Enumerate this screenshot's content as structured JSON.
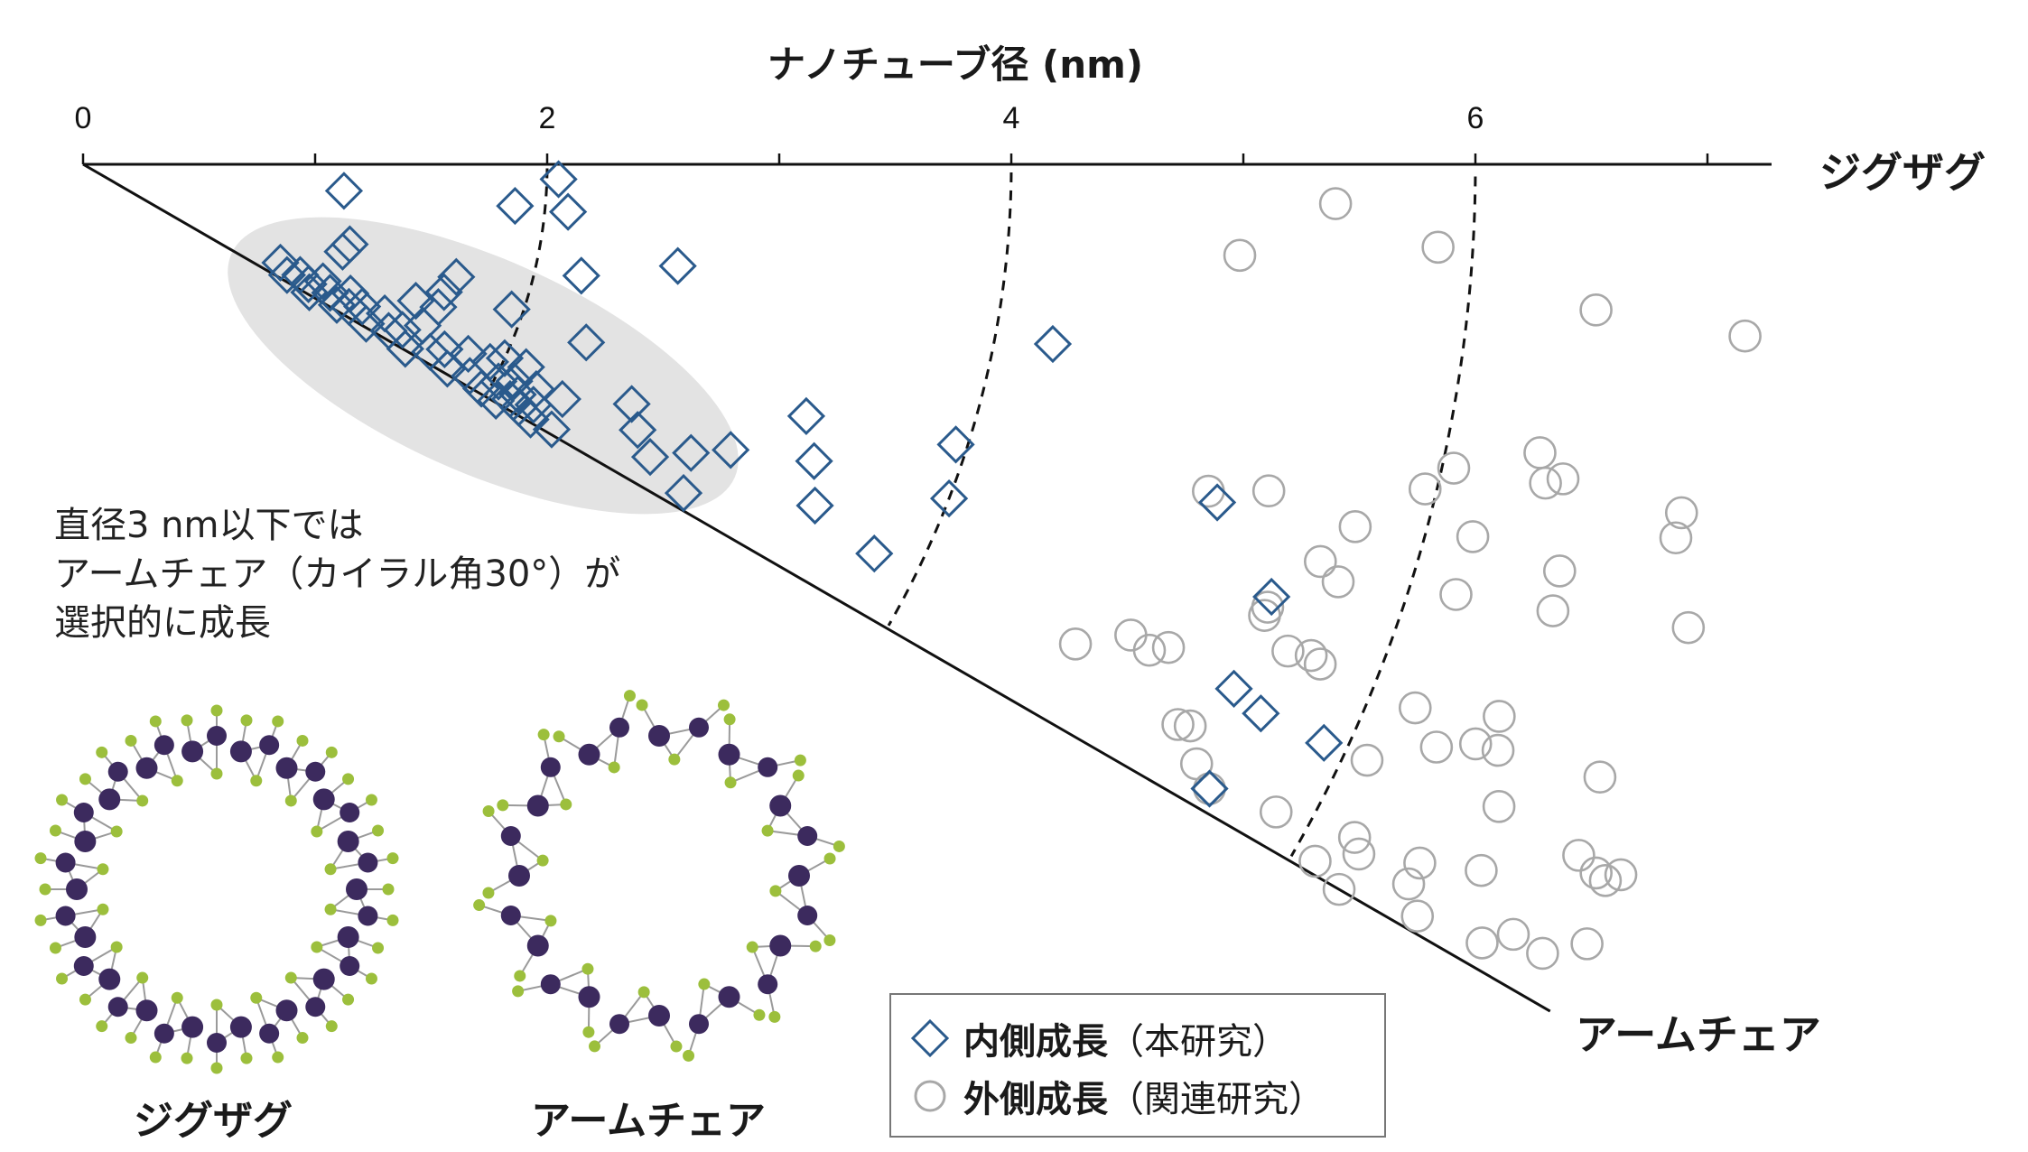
{
  "chart_data": {
    "type": "scatter",
    "coordinate_system": "polar-sector (diameter vs. chiral angle)",
    "radial_axis": {
      "label": "ナノチューブ径 (nm)",
      "ticks": [
        0,
        2,
        4,
        6
      ],
      "range": [
        0,
        7.3
      ]
    },
    "angle_axis": {
      "start_label": "ジグザグ",
      "end_label": "アームチェア",
      "range_deg": [
        0,
        30
      ]
    },
    "series": [
      {
        "name": "内側成長（本研究）",
        "marker": "diamond",
        "color": "#2a5a8c",
        "points": [
          [
            1.13,
            5.8
          ],
          [
            2.05,
            1.8
          ],
          [
            1.87,
            5.5
          ],
          [
            2.1,
            5.6
          ],
          [
            2.6,
            9.7
          ],
          [
            1.2,
            16.7
          ],
          [
            1.18,
            18.6
          ],
          [
            1.55,
            22.3
          ],
          [
            1.65,
            19.5
          ],
          [
            1.68,
            16.8
          ],
          [
            1.65,
            21.9
          ],
          [
            1.95,
            18.7
          ],
          [
            2.2,
            12.6
          ],
          [
            2.3,
            19.5
          ],
          [
            2.1,
            24.6
          ],
          [
            2.3,
            26.1
          ],
          [
            2.32,
            29.5
          ],
          [
            2.58,
            23.6
          ],
          [
            2.65,
            25.6
          ],
          [
            2.75,
            27.3
          ],
          [
            2.95,
            28.7
          ],
          [
            2.9,
            25.4
          ],
          [
            3.05,
            23.8
          ],
          [
            3.3,
            19.2
          ],
          [
            3.4,
            22.1
          ],
          [
            3.48,
            25.0
          ],
          [
            3.8,
            26.2
          ],
          [
            3.95,
            17.8
          ],
          [
            4.0,
            21.1
          ],
          [
            4.25,
            10.5
          ],
          [
            5.1,
            16.6
          ],
          [
            5.45,
            20.0
          ],
          [
            5.45,
            24.5
          ],
          [
            5.6,
            25.0
          ],
          [
            5.55,
            29.0
          ],
          [
            5.9,
            25.0
          ],
          [
            0.95,
            26.5
          ],
          [
            1.0,
            28.5
          ],
          [
            1.05,
            27.0
          ],
          [
            1.1,
            28.0
          ],
          [
            1.12,
            29.5
          ],
          [
            1.15,
            26.0
          ],
          [
            1.2,
            27.5
          ],
          [
            1.25,
            29.0
          ],
          [
            1.28,
            25.8
          ],
          [
            1.3,
            28.2
          ],
          [
            1.35,
            27.0
          ],
          [
            1.4,
            29.4
          ],
          [
            1.45,
            26.3
          ],
          [
            1.5,
            28.6
          ],
          [
            1.55,
            27.4
          ],
          [
            1.6,
            29.8
          ],
          [
            1.62,
            25.4
          ],
          [
            1.7,
            28.4
          ],
          [
            1.75,
            27.1
          ],
          [
            1.8,
            29.3
          ],
          [
            1.85,
            26.2
          ],
          [
            1.9,
            28.7
          ],
          [
            1.95,
            25.9
          ],
          [
            1.97,
            29.4
          ],
          [
            2.0,
            24.7
          ],
          [
            2.02,
            27.6
          ],
          [
            2.05,
            29.8
          ],
          [
            2.08,
            26.7
          ],
          [
            2.1,
            28.8
          ],
          [
            2.12,
            27.9
          ],
          [
            2.15,
            29.2
          ],
          [
            2.18,
            26.4
          ],
          [
            2.2,
            28.1
          ],
          [
            2.22,
            29.7
          ]
        ]
      },
      {
        "name": "外側成長（関連研究）",
        "marker": "circle",
        "color": "#a8a8a8",
        "points": [
          [
            5.0,
            4.5
          ],
          [
            5.4,
            1.8
          ],
          [
            5.85,
            3.5
          ],
          [
            6.55,
            5.5
          ],
          [
            7.2,
            5.9
          ],
          [
            6.05,
            12.5
          ],
          [
            6.4,
            11.2
          ],
          [
            6.45,
            12.3
          ],
          [
            6.52,
            12.0
          ],
          [
            7.05,
            12.3
          ],
          [
            7.05,
            13.2
          ],
          [
            5.05,
            16.2
          ],
          [
            5.3,
            15.4
          ],
          [
            5.95,
            13.6
          ],
          [
            5.7,
            15.9
          ],
          [
            5.6,
            17.8
          ],
          [
            5.7,
            18.4
          ],
          [
            6.2,
            17.4
          ],
          [
            6.2,
            15.0
          ],
          [
            6.6,
            15.4
          ],
          [
            6.62,
            16.9
          ],
          [
            7.2,
            16.1
          ],
          [
            4.75,
            25.8
          ],
          [
            4.95,
            24.2
          ],
          [
            5.05,
            24.5
          ],
          [
            5.12,
            24.0
          ],
          [
            5.6,
            22.0
          ],
          [
            5.3,
            27.1
          ],
          [
            5.45,
            20.5
          ],
          [
            5.45,
            20.9
          ],
          [
            5.7,
            21.8
          ],
          [
            5.75,
            22.0
          ],
          [
            6.2,
            22.2
          ],
          [
            6.35,
            23.3
          ],
          [
            6.5,
            22.6
          ],
          [
            6.55,
            21.3
          ],
          [
            6.6,
            22.5
          ],
          [
            6.7,
            24.4
          ],
          [
            7.05,
            22.0
          ],
          [
            7.1,
            24.8
          ],
          [
            7.2,
            25.1
          ],
          [
            7.25,
            25.2
          ],
          [
            7.3,
            24.8
          ],
          [
            5.35,
            26.9
          ],
          [
            5.45,
            28.3
          ],
          [
            5.55,
            29.0
          ],
          [
            5.85,
            28.5
          ],
          [
            6.2,
            27.9
          ],
          [
            6.25,
            28.4
          ],
          [
            6.1,
            29.5
          ],
          [
            6.25,
            30.0
          ],
          [
            6.5,
            28.5
          ],
          [
            6.6,
            29.4
          ],
          [
            6.75,
            26.8
          ],
          [
            6.9,
            29.1
          ],
          [
            7.0,
            28.3
          ],
          [
            7.15,
            28.4
          ],
          [
            7.3,
            27.4
          ],
          [
            6.5,
            27.6
          ],
          [
            6.1,
            24.9
          ]
        ]
      }
    ],
    "annotations": [
      "直径3 nm以下では",
      "アームチェア（カイラル角30°）が",
      "選択的に成長"
    ],
    "boundary_lines_nm": [
      2,
      4,
      6
    ],
    "highlight": "shaded ellipse over clustered diamonds near the armchair edge at diameters below 3 nm"
  },
  "labels": {
    "x_axis_title": "ナノチューブ径 (nm)",
    "zigzag": "ジグザグ",
    "armchair": "アームチェア",
    "note_line1": "直径3 nm以下では",
    "note_line2": "アームチェア（カイラル角30°）が",
    "note_line3": "選択的に成長",
    "structure_zigzag": "ジグザグ",
    "structure_armchair": "アームチェア"
  },
  "legend": {
    "inner_bold": "内側成長",
    "inner_rest": "（本研究）",
    "outer_bold": "外側成長",
    "outer_rest": "（関連研究）"
  },
  "colors": {
    "diamond": "#2a5a8c",
    "circle": "#a8a8a8",
    "metal_atom": "#3c2a5e",
    "chalcogen_atom": "#9cbf3c",
    "ellipse": "#e3e3e3"
  }
}
